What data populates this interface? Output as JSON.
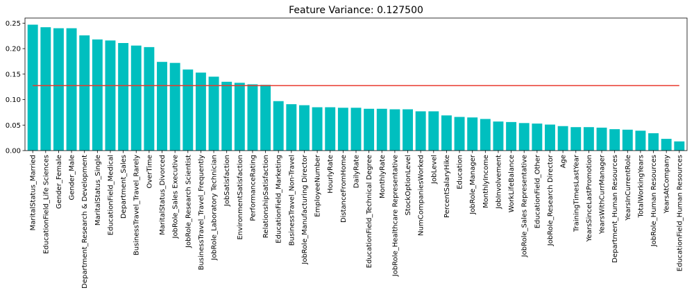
{
  "chart_data": {
    "type": "bar",
    "title": "Feature Variance: 0.127500",
    "xlabel": "",
    "ylabel": "",
    "ylim": [
      0,
      0.26
    ],
    "yticks": [
      0.0,
      0.05,
      0.1,
      0.15,
      0.2,
      0.25
    ],
    "ytick_labels": [
      "0.00",
      "0.05",
      "0.10",
      "0.15",
      "0.20",
      "0.25"
    ],
    "grid": false,
    "bar_color": "#00bfbf",
    "threshold_line": {
      "value": 0.1275,
      "color": "#e8392b"
    },
    "categories": [
      "MaritalStatus_Married",
      "EducationField_Life Sciences",
      "Gender_Female",
      "Gender_Male",
      "Department_Research & Development",
      "MaritalStatus_Single",
      "EducationField_Medical",
      "Department_Sales",
      "BusinessTravel_Travel_Rarely",
      "OverTime",
      "MaritalStatus_Divorced",
      "JobRole_Sales Executive",
      "JobRole_Research Scientist",
      "BusinessTravel_Travel_Frequently",
      "JobRole_Laboratory Technician",
      "JobSatisfaction",
      "EnvironmentSatisfaction",
      "PerformanceRating",
      "RelationshipSatisfaction",
      "EducationField_Marketing",
      "BusinessTravel_Non-Travel",
      "JobRole_Manufacturing Director",
      "EmployeeNumber",
      "HourlyRate",
      "DistanceFromHome",
      "DailyRate",
      "EducationField_Technical Degree",
      "MonthlyRate",
      "JobRole_Healthcare Representative",
      "StockOptionLevel",
      "NumCompaniesWorked",
      "JobLevel",
      "PercentSalaryHike",
      "Education",
      "JobRole_Manager",
      "MonthlyIncome",
      "JobInvolvement",
      "WorkLifeBalance",
      "JobRole_Sales Representative",
      "EducationField_Other",
      "JobRole_Research Director",
      "Age",
      "TrainingTimesLastYear",
      "YearsSinceLastPromotion",
      "YearsWithCurrManager",
      "Department_Human Resources",
      "YearsInCurrentRole",
      "TotalWorkingYears",
      "JobRole_Human Resources",
      "YearsAtCompany",
      "EducationField_Human Resources"
    ],
    "values": [
      0.247,
      0.242,
      0.24,
      0.24,
      0.226,
      0.218,
      0.216,
      0.211,
      0.206,
      0.203,
      0.174,
      0.172,
      0.159,
      0.153,
      0.145,
      0.135,
      0.133,
      0.13,
      0.129,
      0.097,
      0.091,
      0.089,
      0.085,
      0.085,
      0.084,
      0.084,
      0.082,
      0.082,
      0.081,
      0.081,
      0.077,
      0.077,
      0.069,
      0.066,
      0.065,
      0.062,
      0.057,
      0.056,
      0.054,
      0.053,
      0.051,
      0.048,
      0.046,
      0.046,
      0.045,
      0.042,
      0.041,
      0.039,
      0.034,
      0.023,
      0.018
    ]
  }
}
